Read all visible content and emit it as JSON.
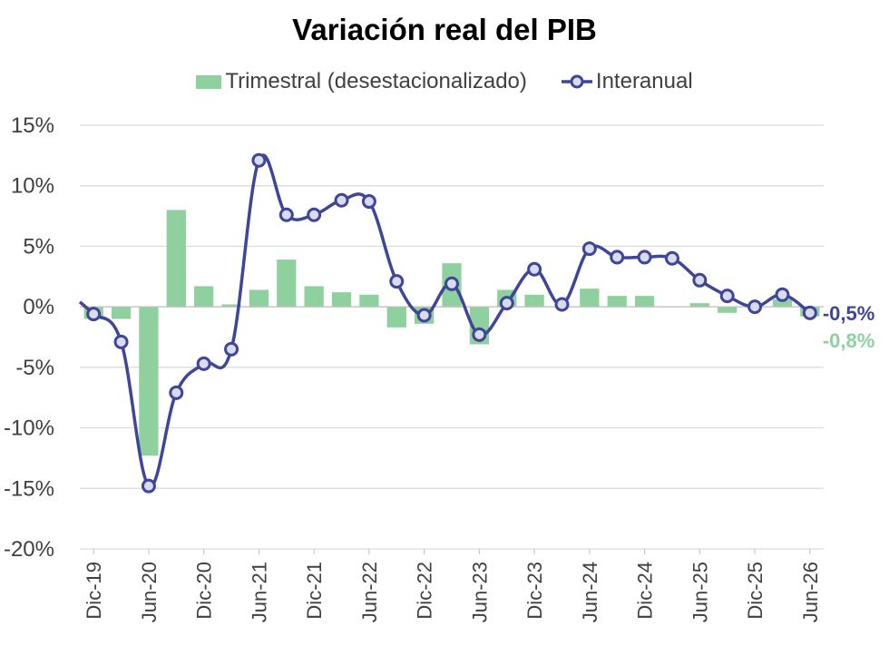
{
  "chart_data": {
    "type": "bar",
    "title": "Variación real del PIB",
    "xlabel": "",
    "ylabel": "",
    "ylim": [
      -20,
      15
    ],
    "yticks": [
      "15%",
      "10%",
      "5%",
      "0%",
      "-5%",
      "-10%",
      "-15%",
      "-20%"
    ],
    "ytick_values": [
      15,
      10,
      5,
      0,
      -5,
      -10,
      -15,
      -20
    ],
    "grid": true,
    "legend_position": "top",
    "categories": [
      "Dic-19",
      "Mar-20",
      "Jun-20",
      "Sep-20",
      "Dic-20",
      "Mar-21",
      "Jun-21",
      "Sep-21",
      "Dic-21",
      "Mar-22",
      "Jun-22",
      "Sep-22",
      "Dic-22",
      "Mar-23",
      "Jun-23",
      "Sep-23",
      "Dic-23",
      "Mar-24",
      "Jun-24",
      "Sep-24",
      "Dic-24",
      "Mar-25",
      "Jun-25",
      "Sep-25",
      "Dic-25",
      "Mar-26",
      "Jun-26"
    ],
    "tick_labels": [
      "Dic-19",
      "Jun-20",
      "Dic-20",
      "Jun-21",
      "Dic-21",
      "Jun-22",
      "Dic-22",
      "Jun-23",
      "Dic-23",
      "Jun-24",
      "Dic-24",
      "Jun-25",
      "Dic-25",
      "Jun-26"
    ],
    "series": [
      {
        "name": "Trimestral (desestacionalizado)",
        "kind": "bar",
        "color": "#8FD19E",
        "values": [
          -1.0,
          -1.0,
          -12.3,
          8.0,
          1.7,
          0.2,
          1.4,
          3.9,
          1.7,
          1.2,
          1.0,
          -1.7,
          -1.4,
          3.6,
          -3.1,
          1.4,
          1.0,
          0.0,
          1.5,
          0.9,
          0.9,
          0.0,
          0.3,
          -0.5,
          0.0,
          0.6,
          -0.8
        ]
      },
      {
        "name": "Interanual",
        "kind": "line",
        "color": "#3F4697",
        "marker_fill": "#D9DBEE",
        "values": [
          -0.6,
          -2.9,
          -14.8,
          -7.1,
          -4.7,
          -3.5,
          12.1,
          7.6,
          7.6,
          8.8,
          8.7,
          2.1,
          -0.7,
          1.9,
          -2.3,
          0.3,
          3.1,
          0.2,
          4.8,
          4.1,
          4.1,
          4.0,
          2.2,
          0.9,
          0.0,
          1.0,
          -0.5
        ]
      }
    ],
    "annotations": [
      {
        "text": "-0,5%",
        "color": "#3F4697",
        "series": "Interanual"
      },
      {
        "text": "-0,8%",
        "color": "#8FD19E",
        "series": "Trimestral (desestacionalizado)"
      }
    ]
  }
}
